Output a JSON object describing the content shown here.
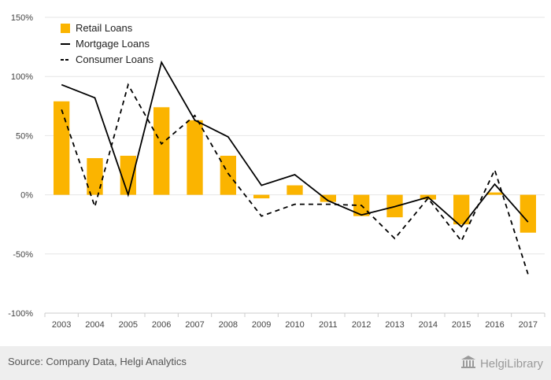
{
  "chart_data": {
    "type": "bar",
    "categories": [
      "2003",
      "2004",
      "2005",
      "2006",
      "2007",
      "2008",
      "2009",
      "2010",
      "2011",
      "2012",
      "2013",
      "2014",
      "2015",
      "2016",
      "2017"
    ],
    "series": [
      {
        "name": "Retail Loans",
        "kind": "bar",
        "color": "#fbb400",
        "values": [
          79,
          31,
          33,
          74,
          63,
          33,
          -3,
          8,
          -6,
          -18,
          -19,
          -4,
          -25,
          2,
          -32
        ]
      },
      {
        "name": "Mortgage Loans",
        "kind": "line",
        "style": "solid",
        "color": "#000000",
        "values": [
          93,
          82,
          0,
          112,
          63,
          49,
          8,
          17,
          -5,
          -17,
          -10,
          -2,
          -27,
          9,
          -23
        ]
      },
      {
        "name": "Consumer Loans",
        "kind": "line",
        "style": "dashed",
        "color": "#000000",
        "values": [
          72,
          -10,
          93,
          43,
          67,
          18,
          -18,
          -8,
          -8,
          -9,
          -37,
          -3,
          -39,
          21,
          -67
        ]
      }
    ],
    "yticks": [
      "-100%",
      "-50%",
      "0%",
      "50%",
      "100%",
      "150%"
    ],
    "ytick_values": [
      -100,
      -50,
      0,
      50,
      100,
      150
    ],
    "ylim": [
      -100,
      150
    ],
    "grid": true,
    "legend_position": "top-left"
  },
  "footer": {
    "source": "Source: Company Data, Helgi Analytics",
    "brand": "HelgiLibrary"
  },
  "colors": {
    "footer_bg": "#eeeeee",
    "grid": "#e6e6e6",
    "axis": "#cccccc"
  },
  "icons": {
    "brand": "library-building-icon"
  }
}
